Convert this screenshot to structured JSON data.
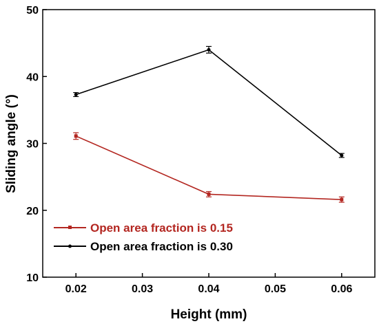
{
  "chart_data": {
    "type": "line",
    "xlabel": "Height (mm)",
    "ylabel": "Sliding angle (°)",
    "x_ticks": [
      "0.02",
      "0.03",
      "0.04",
      "0.05",
      "0.06"
    ],
    "y_ticks": [
      "10",
      "20",
      "30",
      "40",
      "50"
    ],
    "xlim": [
      0.015,
      0.065
    ],
    "ylim": [
      10,
      50
    ],
    "grid": false,
    "legend_position": "bottom-left",
    "series": [
      {
        "name": "Open area fraction is 0.15",
        "color": "#b32620",
        "x": [
          0.02,
          0.04,
          0.06
        ],
        "y": [
          31.1,
          22.4,
          21.6
        ],
        "error": [
          0.5,
          0.4,
          0.4
        ]
      },
      {
        "name": "Open area fraction is 0.30",
        "color": "#000000",
        "x": [
          0.02,
          0.04,
          0.06
        ],
        "y": [
          37.3,
          44.0,
          28.2
        ],
        "error": [
          0.3,
          0.5,
          0.3
        ]
      }
    ]
  }
}
